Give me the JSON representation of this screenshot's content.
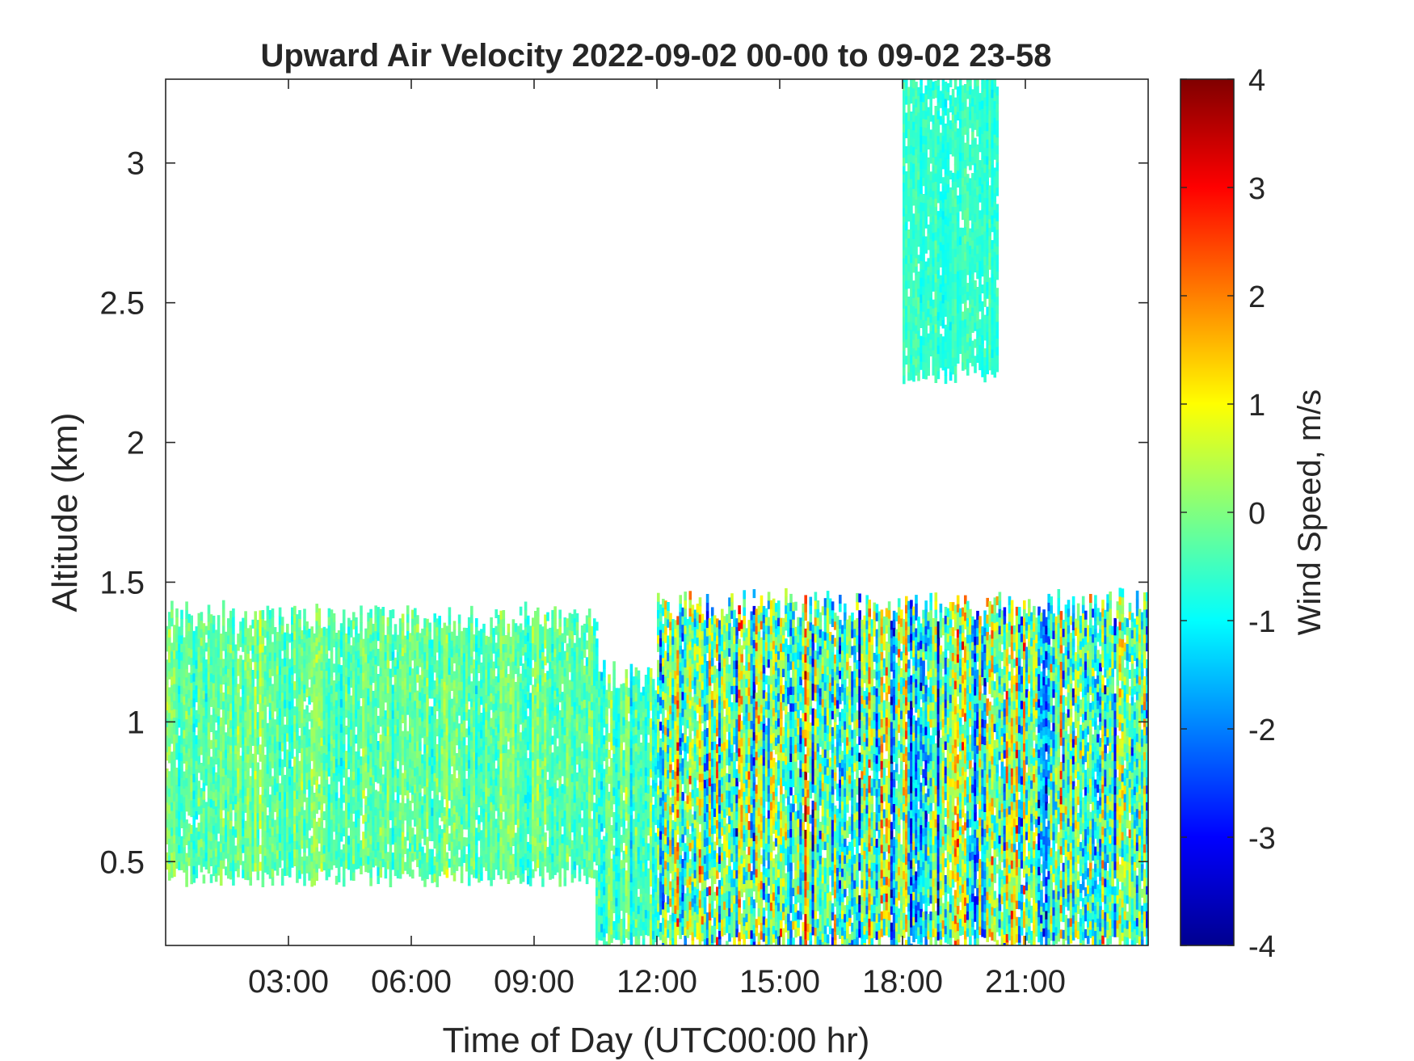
{
  "chart_data": {
    "type": "heatmap",
    "title": "Upward Air Velocity 2022-09-02 00-00 to 09-02 23-58",
    "xlabel": "Time of Day (UTC00:00 hr)",
    "ylabel": "Altitude (km)",
    "xlim": [
      0,
      24
    ],
    "ylim": [
      0.2,
      3.3
    ],
    "xticks": [
      {
        "value": 3,
        "label": "03:00"
      },
      {
        "value": 6,
        "label": "06:00"
      },
      {
        "value": 9,
        "label": "09:00"
      },
      {
        "value": 12,
        "label": "12:00"
      },
      {
        "value": 15,
        "label": "15:00"
      },
      {
        "value": 18,
        "label": "18:00"
      },
      {
        "value": 21,
        "label": "21:00"
      }
    ],
    "yticks": [
      {
        "value": 0.5,
        "label": "0.5"
      },
      {
        "value": 1,
        "label": "1"
      },
      {
        "value": 1.5,
        "label": "1.5"
      },
      {
        "value": 2,
        "label": "2"
      },
      {
        "value": 2.5,
        "label": "2.5"
      },
      {
        "value": 3,
        "label": "3"
      }
    ],
    "colorbar": {
      "label": "Wind Speed, m/s",
      "min": -4,
      "max": 4,
      "colormap": "jet",
      "ticks": [
        {
          "value": 4,
          "label": "4"
        },
        {
          "value": 3,
          "label": "3"
        },
        {
          "value": 2,
          "label": "2"
        },
        {
          "value": 1,
          "label": "1"
        },
        {
          "value": 0,
          "label": "0"
        },
        {
          "value": -1,
          "label": "-1"
        },
        {
          "value": -2,
          "label": "-2"
        },
        {
          "value": -3,
          "label": "-3"
        },
        {
          "value": -4,
          "label": "-4"
        }
      ]
    },
    "grid": false,
    "data_regions": [
      {
        "name": "boundary-layer-morning",
        "x_range": [
          0,
          10.5
        ],
        "y_bottom": 0.45,
        "y_top": 1.35,
        "mean_velocity": -0.3,
        "spread": 0.5
      },
      {
        "name": "boundary-layer-midday",
        "x_range": [
          10.5,
          12
        ],
        "y_bottom": 0.2,
        "y_top": 1.15,
        "mean_velocity": -0.4,
        "spread": 0.6
      },
      {
        "name": "convective-afternoon",
        "x_range": [
          12,
          24
        ],
        "y_bottom": 0.2,
        "y_top": 1.4,
        "mean_velocity": -0.4,
        "spread": 1.6
      },
      {
        "name": "high-cloud-plume",
        "x_range": [
          18,
          20.3
        ],
        "y_bottom": 2.25,
        "y_top": 3.3,
        "mean_velocity": -0.6,
        "spread": 0.3
      }
    ]
  }
}
